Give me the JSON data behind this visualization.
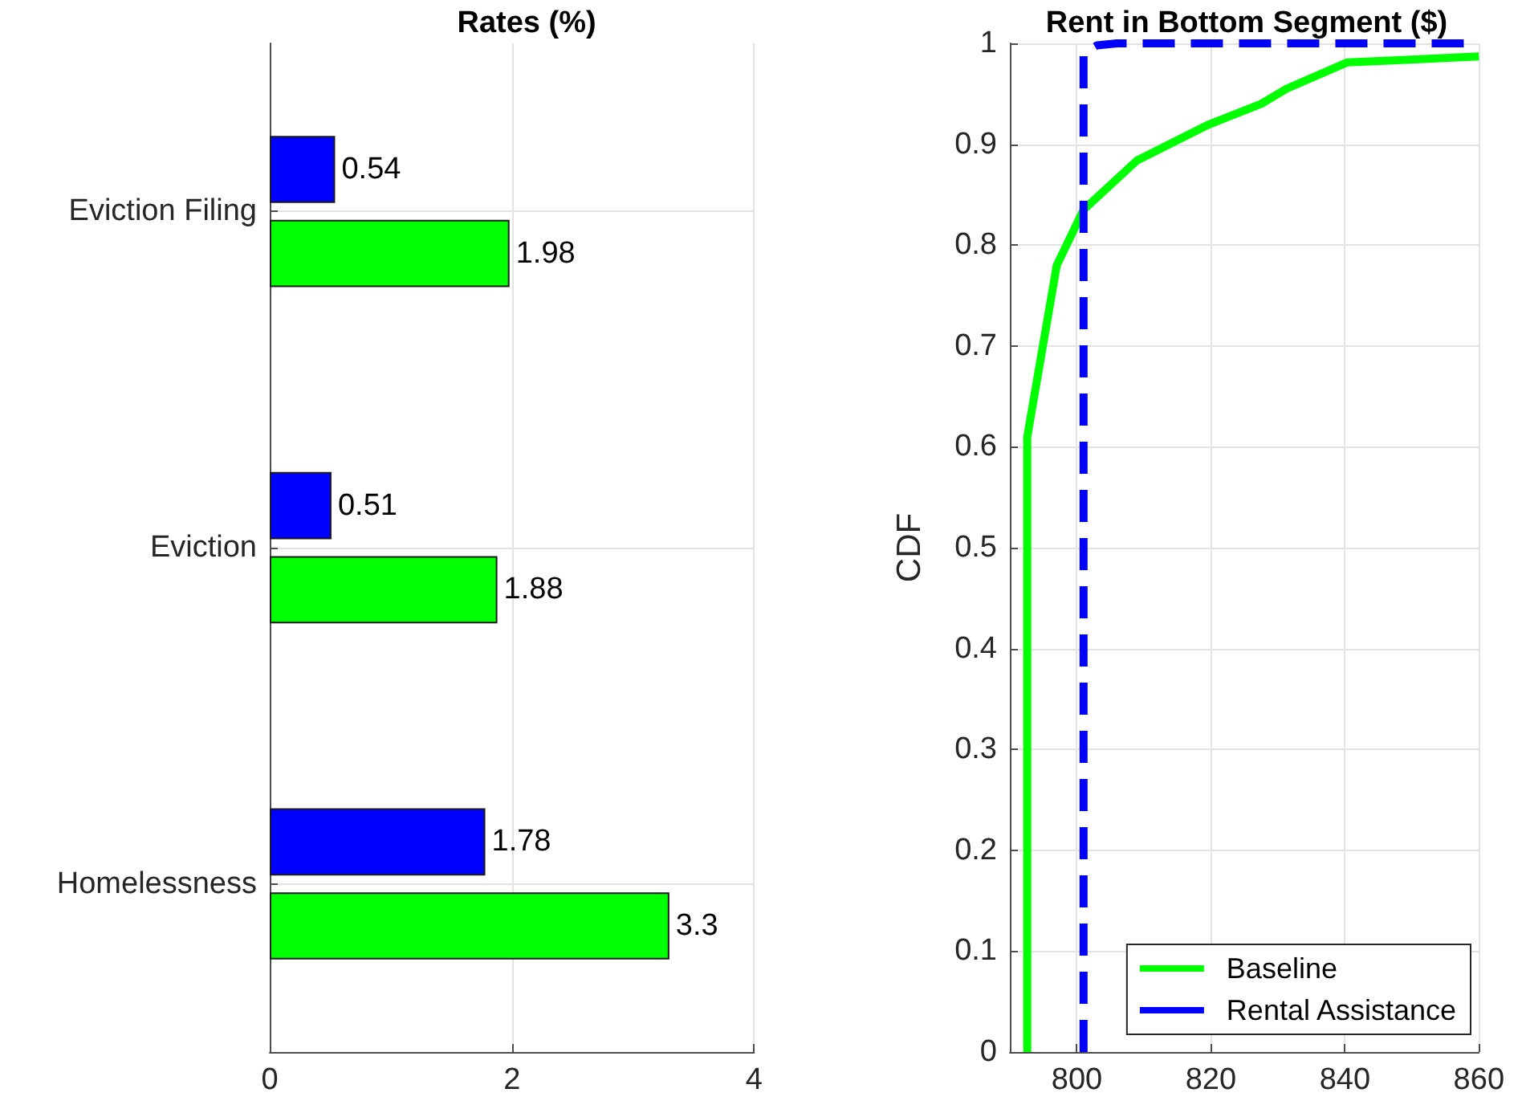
{
  "chart_data": [
    {
      "type": "bar",
      "title": "Rates (%)",
      "orientation": "horizontal",
      "categories": [
        "Eviction Filing",
        "Eviction",
        "Homelessness"
      ],
      "series": [
        {
          "color": "#0000ff",
          "values": [
            0.54,
            0.51,
            1.78
          ]
        },
        {
          "color": "#00ff00",
          "values": [
            1.98,
            1.88,
            3.3
          ]
        }
      ],
      "xlim": [
        0,
        4
      ],
      "xticks": [
        0,
        2,
        4
      ],
      "data_labels": true,
      "grid": true,
      "legend": false
    },
    {
      "type": "line",
      "title": "Rent in Bottom Segment ($)",
      "ylabel": "CDF",
      "xlim": [
        790,
        860
      ],
      "xticks": [
        800,
        820,
        840,
        860
      ],
      "ylim": [
        0,
        1
      ],
      "yticks": [
        0,
        0.1,
        0.2,
        0.3,
        0.4,
        0.5,
        0.6,
        0.7,
        0.8,
        0.9,
        1
      ],
      "grid": true,
      "legend": "bottom right",
      "marker": "none",
      "series": [
        {
          "name": "Baseline",
          "color": "#00ff00",
          "line_style": "solid",
          "x": [
            792.6,
            792.6,
            797,
            801,
            809,
            819.5,
            827.5,
            831.3,
            840.3,
            860
          ],
          "values": [
            0,
            0.61,
            0.78,
            0.835,
            0.884,
            0.919,
            0.94,
            0.955,
            0.981,
            0.987
          ]
        },
        {
          "name": "Rental Assistance",
          "color": "#0000ff",
          "line_style": "dashed",
          "x": [
            801,
            801,
            803,
            806,
            860
          ],
          "values": [
            0,
            0.99,
            0.998,
            1,
            1
          ]
        }
      ]
    }
  ]
}
